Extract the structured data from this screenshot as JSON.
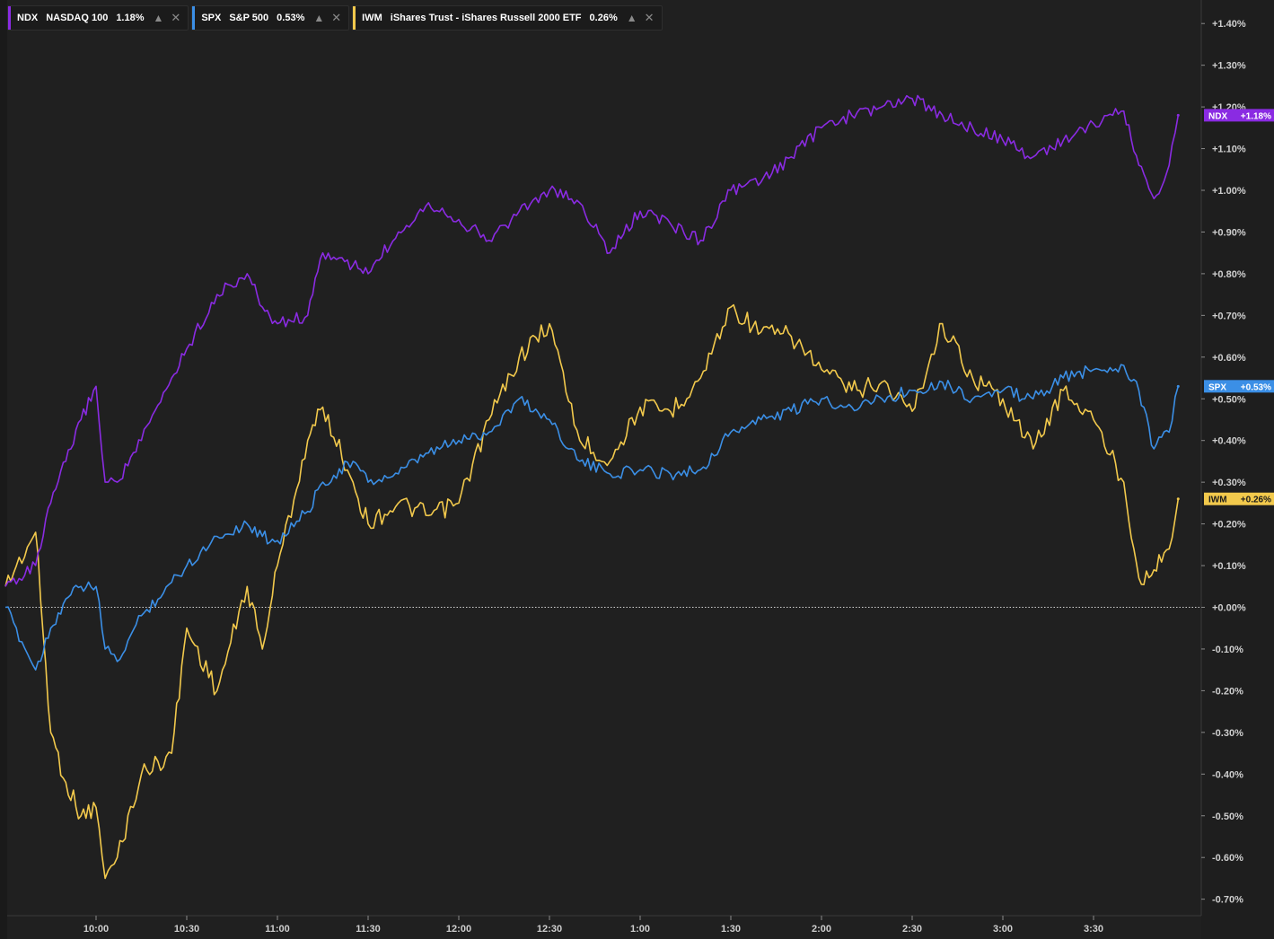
{
  "legend": [
    {
      "symbol": "NDX",
      "name": "NASDAQ 100",
      "change": "1.18%",
      "color": "#8a2be2"
    },
    {
      "symbol": "SPX",
      "name": "S&P 500",
      "change": "0.53%",
      "color": "#3b8fe6"
    },
    {
      "symbol": "IWM",
      "name": "iShares Trust - iShares Russell 2000 ETF",
      "change": "0.26%",
      "color": "#f2c94c"
    }
  ],
  "chart_data": {
    "type": "line",
    "x_ticks": [
      "10:00",
      "10:30",
      "11:00",
      "11:30",
      "12:00",
      "12:30",
      "1:00",
      "1:30",
      "2:00",
      "2:30",
      "3:00",
      "3:30"
    ],
    "y_ticks": [
      "+1.40%",
      "+1.30%",
      "+1.20%",
      "+1.10%",
      "+1.00%",
      "+0.90%",
      "+0.80%",
      "+0.70%",
      "+0.60%",
      "+0.50%",
      "+0.40%",
      "+0.30%",
      "+0.20%",
      "+0.10%",
      "+0.00%",
      "-0.10%",
      "-0.20%",
      "-0.30%",
      "-0.40%",
      "-0.50%",
      "-0.60%",
      "-0.70%"
    ],
    "ylim": [
      -0.72,
      1.42
    ],
    "zero_line": true,
    "last_value_tags": [
      {
        "symbol": "NDX",
        "label": "+1.18%",
        "value": 1.18,
        "color": "#8a2be2"
      },
      {
        "symbol": "SPX",
        "label": "+0.53%",
        "value": 0.53,
        "color": "#3b8fe6"
      },
      {
        "symbol": "IWM",
        "label": "+0.26%",
        "value": 0.26,
        "color": "#f2c94c"
      }
    ],
    "series": [
      {
        "name": "NDX",
        "color": "#8a2be2",
        "x": [
          "09:30",
          "09:40",
          "09:45",
          "09:50",
          "09:55",
          "10:00",
          "10:03",
          "10:07",
          "10:15",
          "10:25",
          "10:30",
          "10:40",
          "10:50",
          "10:55",
          "11:00",
          "11:10",
          "11:15",
          "11:25",
          "11:30",
          "11:40",
          "11:50",
          "12:00",
          "12:10",
          "12:20",
          "12:30",
          "12:40",
          "12:50",
          "1:00",
          "1:10",
          "1:20",
          "1:30",
          "1:40",
          "1:50",
          "2:00",
          "2:10",
          "2:20",
          "2:30",
          "2:40",
          "2:50",
          "3:00",
          "3:10",
          "3:20",
          "3:30",
          "3:40",
          "3:45",
          "3:50",
          "3:55",
          "3:58"
        ],
        "values": [
          0.05,
          0.1,
          0.25,
          0.35,
          0.45,
          0.53,
          0.3,
          0.3,
          0.4,
          0.55,
          0.62,
          0.75,
          0.8,
          0.72,
          0.68,
          0.7,
          0.85,
          0.82,
          0.8,
          0.9,
          0.97,
          0.93,
          0.88,
          0.95,
          1.0,
          0.97,
          0.85,
          0.95,
          0.92,
          0.88,
          1.0,
          1.02,
          1.08,
          1.15,
          1.18,
          1.2,
          1.22,
          1.18,
          1.15,
          1.12,
          1.08,
          1.12,
          1.16,
          1.19,
          1.06,
          0.98,
          1.06,
          1.18
        ]
      },
      {
        "name": "SPX",
        "color": "#3b8fe6",
        "x": [
          "09:30",
          "09:40",
          "09:45",
          "09:50",
          "09:55",
          "10:00",
          "10:03",
          "10:07",
          "10:15",
          "10:25",
          "10:30",
          "10:40",
          "10:50",
          "10:55",
          "11:00",
          "11:10",
          "11:15",
          "11:25",
          "11:30",
          "11:40",
          "11:50",
          "12:00",
          "12:10",
          "12:20",
          "12:30",
          "12:40",
          "12:50",
          "1:00",
          "1:10",
          "1:20",
          "1:30",
          "1:40",
          "1:50",
          "2:00",
          "2:10",
          "2:20",
          "2:30",
          "2:40",
          "2:50",
          "3:00",
          "3:10",
          "3:20",
          "3:30",
          "3:40",
          "3:45",
          "3:50",
          "3:55",
          "3:58"
        ],
        "values": [
          0.0,
          -0.15,
          -0.05,
          0.02,
          0.05,
          0.05,
          -0.1,
          -0.13,
          -0.02,
          0.06,
          0.1,
          0.17,
          0.2,
          0.17,
          0.16,
          0.23,
          0.3,
          0.35,
          0.3,
          0.32,
          0.37,
          0.4,
          0.42,
          0.5,
          0.45,
          0.35,
          0.32,
          0.33,
          0.32,
          0.33,
          0.42,
          0.45,
          0.47,
          0.5,
          0.48,
          0.5,
          0.52,
          0.54,
          0.5,
          0.52,
          0.5,
          0.55,
          0.57,
          0.58,
          0.52,
          0.38,
          0.42,
          0.53
        ]
      },
      {
        "name": "IWM",
        "color": "#f2c94c",
        "x": [
          "09:30",
          "09:40",
          "09:45",
          "09:50",
          "09:55",
          "10:00",
          "10:03",
          "10:07",
          "10:15",
          "10:25",
          "10:30",
          "10:40",
          "10:50",
          "10:55",
          "11:00",
          "11:10",
          "11:15",
          "11:25",
          "11:30",
          "11:40",
          "11:50",
          "12:00",
          "12:10",
          "12:20",
          "12:30",
          "12:40",
          "12:50",
          "1:00",
          "1:10",
          "1:20",
          "1:30",
          "1:40",
          "1:50",
          "2:00",
          "2:10",
          "2:20",
          "2:30",
          "2:40",
          "2:50",
          "3:00",
          "3:10",
          "3:20",
          "3:30",
          "3:40",
          "3:45",
          "3:50",
          "3:55",
          "3:58"
        ],
        "values": [
          0.05,
          0.18,
          -0.3,
          -0.42,
          -0.5,
          -0.48,
          -0.65,
          -0.6,
          -0.4,
          -0.35,
          -0.05,
          -0.2,
          0.05,
          -0.1,
          0.1,
          0.4,
          0.48,
          0.3,
          0.2,
          0.25,
          0.22,
          0.25,
          0.45,
          0.6,
          0.68,
          0.4,
          0.35,
          0.48,
          0.47,
          0.55,
          0.72,
          0.66,
          0.65,
          0.57,
          0.52,
          0.54,
          0.47,
          0.68,
          0.55,
          0.5,
          0.38,
          0.52,
          0.45,
          0.3,
          0.07,
          0.09,
          0.14,
          0.26
        ]
      }
    ]
  }
}
